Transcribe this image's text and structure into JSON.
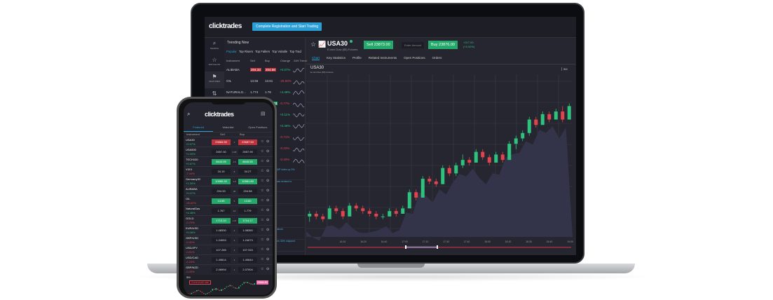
{
  "brand": "clicktrades",
  "desktop": {
    "cta": "Complete Registration and Start Trading",
    "sidebar": [
      "SEARCH",
      "WATCHLIST",
      "FEATURED",
      "POSITIONS",
      "ORDERS"
    ],
    "trending_title": "Trending Now",
    "trending_tabs": [
      "Popular",
      "Top Risers",
      "Top Fallers",
      "Top Volatile",
      "Top Trad"
    ],
    "columns": [
      "Instrument",
      "Sell",
      "Buy",
      "Change",
      "24H Trend"
    ],
    "rows": [
      {
        "name": "ALIBABA",
        "sell": "204.33",
        "buy": "204.58",
        "change": "+0.07%",
        "dir": "up",
        "hl": "red"
      },
      {
        "name": "OIL",
        "sell": "13.56",
        "buy": "13.61",
        "change": "-26.55%",
        "dir": "down",
        "hl": "none"
      },
      {
        "name": "NATURALG...",
        "sell": "1.774",
        "buy": "1.78",
        "change": "+4.48%",
        "dir": "up",
        "hl": "none"
      },
      {
        "name": "GOLD",
        "sell": "1712.15",
        "buy": "1713.53",
        "change": "-0.77%",
        "dir": "down",
        "hl": "green"
      },
      {
        "name": "",
        "sell": "",
        "buy": "",
        "change": "+0.11%",
        "dir": "up",
        "hl": "none"
      },
      {
        "name": "",
        "sell": "",
        "buy": "",
        "change": "+0.36%",
        "dir": "up",
        "hl": "none"
      },
      {
        "name": "",
        "sell": "",
        "buy": "",
        "change": "-0.71%",
        "dir": "down",
        "hl": "none"
      },
      {
        "name": "",
        "sell": "",
        "buy": "",
        "change": "-0.22%",
        "dir": "down",
        "hl": "none"
      },
      {
        "name": "",
        "sell": "",
        "buy": "",
        "change": "-0.10%",
        "dir": "down",
        "hl": "green"
      }
    ],
    "news": [
      "...highs, S&P index up 3%",
      "...l sales was revised to",
      "...or 14%",
      "...highs",
      "... TD",
      "...about outlook",
      "...s between 30% midpoint"
    ],
    "instrument": {
      "symbol": "USA30",
      "subtitle": "E-mini Dow ($5) Futures",
      "sell": "Sell 23873.00",
      "amount_placeholder": "Enter Amount",
      "buy": "Buy 23876.00",
      "change": "+217.00",
      "change_pct": "(+0.92%)"
    },
    "tabs": [
      "Chart",
      "Key Statistics",
      "Profile",
      "Related Instruments",
      "Open Positions",
      "Orders"
    ],
    "chart_title": "USA30",
    "chart_subtitle": "E-mini Dow ($5) Futures",
    "timeframe": "5M",
    "x_ticks": [
      "16:10",
      "16:20",
      "16:40",
      "17:00",
      "17:10",
      "17:30",
      "17:40",
      "18:00",
      "18:10",
      "18:30",
      "18:40",
      "19:00"
    ]
  },
  "mobile": {
    "tabs": [
      "Featured",
      "Watchlist",
      "Open Positions"
    ],
    "columns": [
      "Instrument",
      "Sell",
      "Buy"
    ],
    "rows": [
      {
        "name": "USA30",
        "change": "+0.97%",
        "sell": "23684.50",
        "buy": "23687.50",
        "spread": "3",
        "hl": "red"
      },
      {
        "name": "USA500",
        "change": "+1.00%",
        "sell": "2657.30",
        "buy": "2657.95",
        "spread": "0.65",
        "hl": "none"
      },
      {
        "name": "TECH100",
        "change": "+0.67%",
        "sell": "8643.95",
        "buy": "8645.55",
        "spread": "1.6",
        "hl": "green"
      },
      {
        "name": "VIXX",
        "change": "-7.44%",
        "sell": "34.19",
        "buy": "34.27",
        "spread": "8",
        "hl": "none"
      },
      {
        "name": "Germany30",
        "change": "+1.30%",
        "sell": "10560.20",
        "buy": "10561.80",
        "spread": "1.6",
        "hl": "green"
      },
      {
        "name": "ALIBABA",
        "change": "+0.07%",
        "sell": "204.33",
        "buy": "204.58",
        "spread": "25",
        "hl": "none"
      },
      {
        "name": "OIL",
        "change": "-26.62%",
        "sell": "13.55",
        "buy": "13.60",
        "spread": "5",
        "hl": "green"
      },
      {
        "name": "NaturalGas",
        "change": "+4.48%",
        "sell": "1.767",
        "buy": "1.779",
        "spread": "12",
        "hl": "none"
      },
      {
        "name": "GOLD",
        "change": "-0.70%",
        "sell": "1713.10",
        "buy": "1714.17",
        "spread": "1.07",
        "hl": "green"
      },
      {
        "name": "EUR/USD",
        "change": "+0.08%",
        "sell": "1.08330",
        "buy": "1.08350",
        "spread": "2",
        "hl": "none"
      },
      {
        "name": "GBP/USD",
        "change": "-0.32%",
        "sell": "1.24053",
        "buy": "1.24073",
        "spread": "2",
        "hl": "none"
      },
      {
        "name": "USD/JPY",
        "change": "-0.51%",
        "sell": "107.285",
        "buy": "107.315",
        "spread": "3",
        "hl": "none"
      },
      {
        "name": "USD/CAD",
        "change": "-0.24%",
        "sell": "1.40614",
        "buy": "1.40644",
        "spread": "3",
        "hl": "none"
      },
      {
        "name": "GBP/NZD",
        "change": "-0.20%",
        "sell": "2.06994",
        "buy": "2.07004",
        "spread": "1",
        "hl": "none"
      }
    ],
    "chart_timeframe": "5M",
    "chart_label": "Current sell rate",
    "chart_price": "23684.50"
  },
  "colors": {
    "up": "#2ec27e",
    "down": "#e0454f",
    "accent": "#2a9fd6",
    "bg": "#25262f"
  },
  "candles": [
    [
      10,
      12,
      8,
      11
    ],
    [
      11,
      12,
      9,
      10
    ],
    [
      10,
      11,
      8,
      9
    ],
    [
      9,
      14,
      9,
      13
    ],
    [
      13,
      14,
      11,
      12
    ],
    [
      12,
      13,
      9,
      10
    ],
    [
      10,
      15,
      10,
      14
    ],
    [
      14,
      15,
      12,
      13
    ],
    [
      13,
      14,
      11,
      12
    ],
    [
      12,
      13,
      10,
      11
    ],
    [
      11,
      12,
      9,
      10
    ],
    [
      10,
      11,
      9,
      10
    ],
    [
      10,
      13,
      10,
      12
    ],
    [
      12,
      13,
      10,
      11
    ],
    [
      11,
      14,
      11,
      13
    ],
    [
      13,
      20,
      13,
      19
    ],
    [
      19,
      20,
      16,
      17
    ],
    [
      17,
      25,
      17,
      24
    ],
    [
      24,
      25,
      22,
      23
    ],
    [
      23,
      24,
      21,
      22
    ],
    [
      22,
      29,
      22,
      28
    ],
    [
      28,
      29,
      25,
      26
    ],
    [
      26,
      30,
      25,
      29
    ],
    [
      29,
      33,
      28,
      31
    ],
    [
      31,
      32,
      29,
      30
    ],
    [
      30,
      35,
      30,
      34
    ],
    [
      34,
      35,
      31,
      32
    ],
    [
      32,
      33,
      29,
      30
    ],
    [
      30,
      34,
      30,
      33
    ],
    [
      33,
      34,
      30,
      31
    ],
    [
      31,
      38,
      31,
      37
    ],
    [
      37,
      40,
      35,
      39
    ],
    [
      39,
      42,
      38,
      41
    ],
    [
      41,
      47,
      40,
      46
    ],
    [
      46,
      47,
      43,
      44
    ],
    [
      44,
      49,
      44,
      48
    ],
    [
      48,
      49,
      45,
      46
    ],
    [
      46,
      50,
      46,
      49
    ],
    [
      49,
      51,
      45,
      46
    ],
    [
      46,
      52,
      46,
      51
    ]
  ]
}
